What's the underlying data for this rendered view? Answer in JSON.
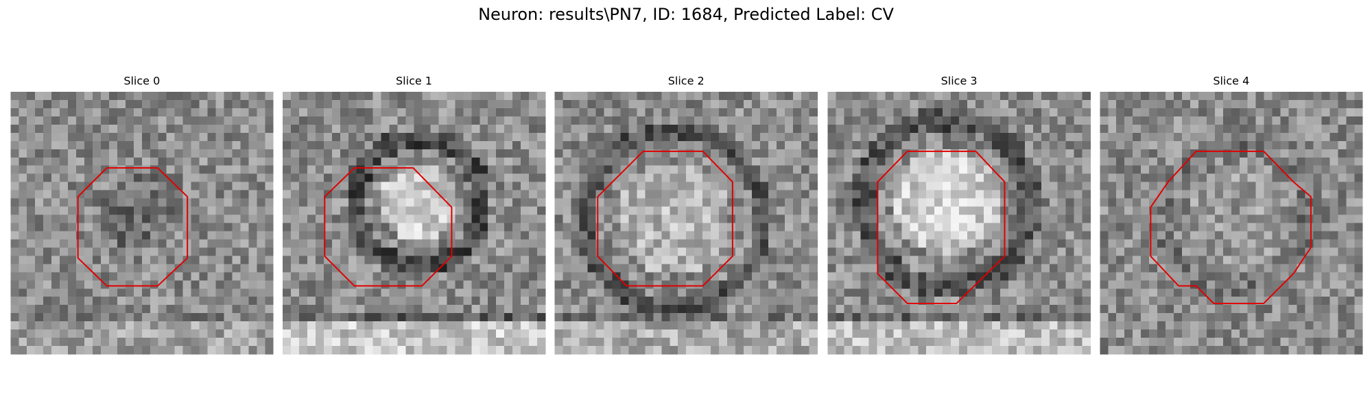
{
  "title": "Neuron: results\\PN7, ID: 1684, Predicted Label: CV",
  "panels": [
    {
      "title": "Slice 0"
    },
    {
      "title": "Slice 1"
    },
    {
      "title": "Slice 2"
    },
    {
      "title": "Slice 3"
    },
    {
      "title": "Slice 4"
    }
  ]
}
